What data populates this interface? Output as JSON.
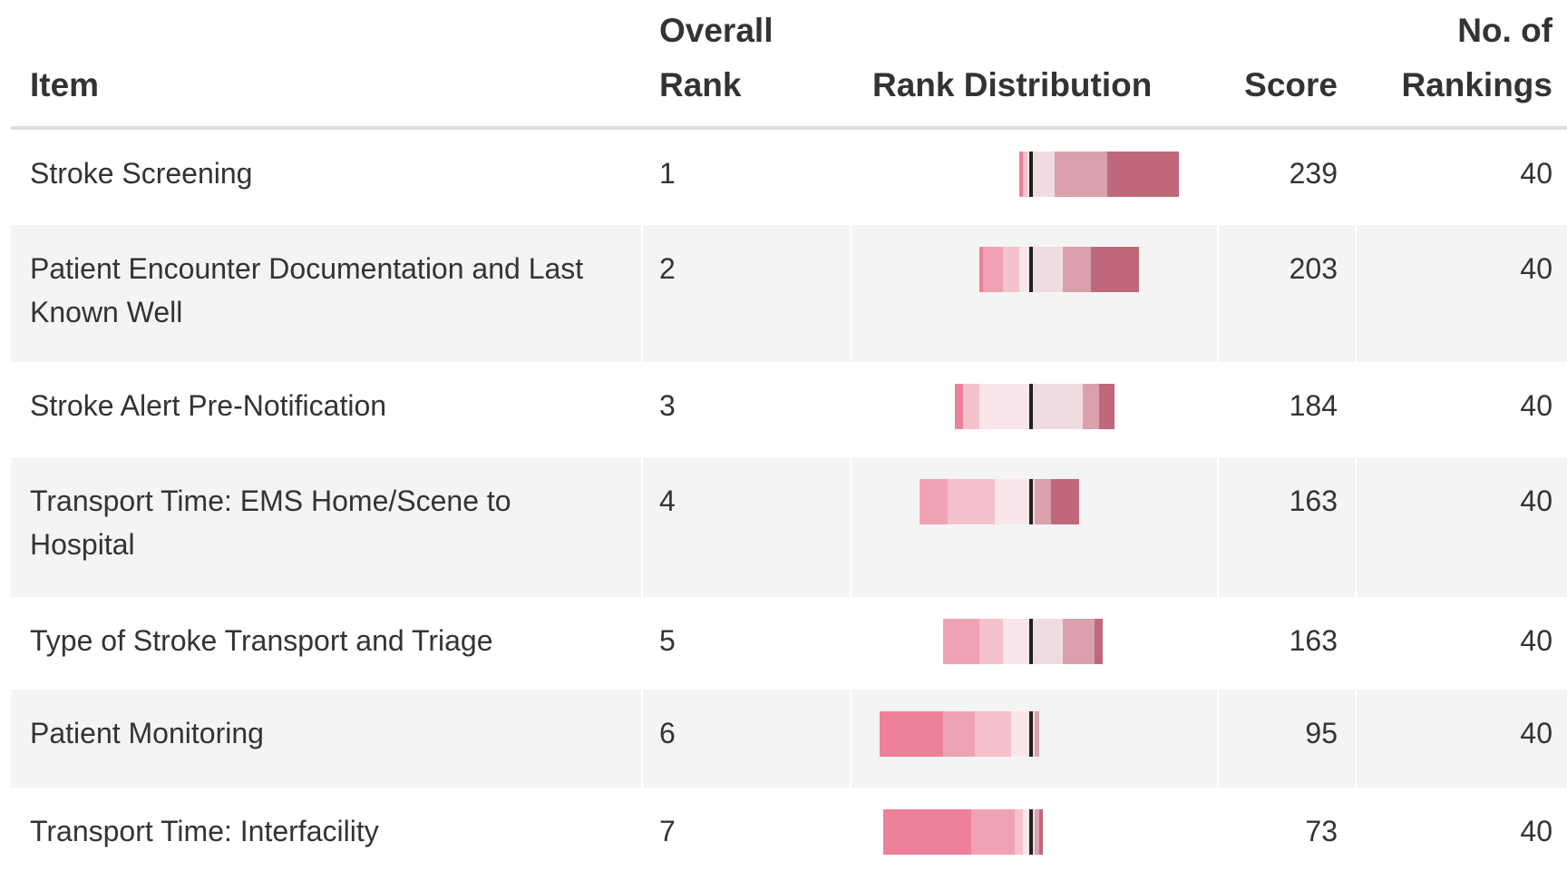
{
  "table": {
    "columns": [
      "Item",
      "Overall Rank",
      "Rank Distribution",
      "Score",
      "No. of Rankings"
    ],
    "rank_colors": [
      "#c0687a",
      "#d9a1ae",
      "#efdce1",
      "#f9e6ea",
      "#f4c1cd",
      "#f0a2b5",
      "#ec8199"
    ],
    "rows": [
      {
        "item": "Stroke Screening",
        "rank": 1,
        "distribution": [
          18,
          13,
          6,
          1,
          1,
          0,
          1
        ],
        "score": 239,
        "rankings": 40
      },
      {
        "item": "Patient Encounter Documentation and Last Known Well",
        "rank": 2,
        "distribution": [
          12,
          7,
          8,
          3,
          4,
          5,
          1
        ],
        "score": 203,
        "rankings": 40
      },
      {
        "item": "Stroke Alert Pre-Notification",
        "rank": 3,
        "distribution": [
          4,
          4,
          13,
          13,
          4,
          0,
          2
        ],
        "score": 184,
        "rankings": 40
      },
      {
        "item": "Transport Time: EMS Home/Scene to Hospital",
        "rank": 4,
        "distribution": [
          7,
          4,
          1,
          9,
          12,
          7,
          0
        ],
        "score": 163,
        "rankings": 40
      },
      {
        "item": "Type of Stroke Transport and Triage",
        "rank": 5,
        "distribution": [
          2,
          8,
          8,
          7,
          6,
          9,
          0
        ],
        "score": 163,
        "rankings": 40
      },
      {
        "item": "Patient Monitoring",
        "rank": 6,
        "distribution": [
          0,
          1,
          1,
          5,
          9,
          8,
          16
        ],
        "score": 95,
        "rankings": 40
      },
      {
        "item": "Transport Time: Interfacility",
        "rank": 7,
        "distribution": [
          1,
          1,
          1,
          2,
          2,
          11,
          22
        ],
        "score": 73,
        "rankings": 40
      }
    ]
  }
}
